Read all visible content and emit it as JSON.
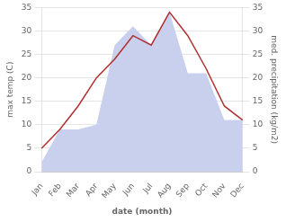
{
  "chart_data": {
    "type": "line",
    "xlabel": "date (month)",
    "ylabel": "max temp (C)",
    "y2label": "med. precipitation (kg/m2)",
    "categories": [
      "Jan",
      "Feb",
      "Mar",
      "Apr",
      "May",
      "Jun",
      "Jul",
      "Aug",
      "Sep",
      "Oct",
      "Nov",
      "Dec"
    ],
    "series": [
      {
        "type": "area",
        "axis": "y2",
        "color": "#c8d0ee",
        "values": [
          2,
          9,
          9,
          10,
          27,
          31,
          27,
          34,
          21,
          21,
          11,
          11
        ]
      },
      {
        "type": "line",
        "color": "#b03030",
        "values": [
          5,
          9,
          14,
          20,
          24,
          29,
          27,
          34,
          29,
          22,
          14,
          11
        ]
      }
    ],
    "ylim": [
      0,
      35
    ],
    "yticks": [
      0,
      5,
      10,
      15,
      20,
      25,
      30,
      35
    ],
    "y2lim": [
      0,
      35
    ],
    "y2ticks": [
      0,
      5,
      10,
      15,
      20,
      25,
      30,
      35
    ],
    "grid": true
  }
}
